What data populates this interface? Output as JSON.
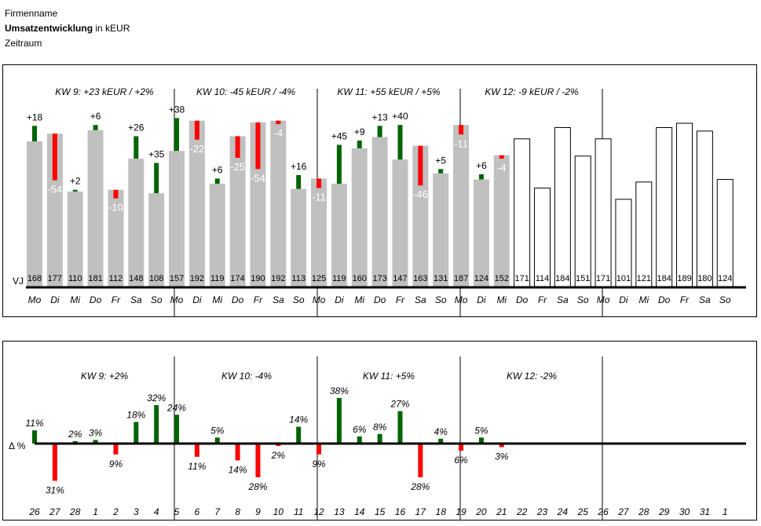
{
  "header": {
    "company": "Firmenname",
    "title_bold": "Umsatzentwicklung",
    "title_rest": " in kEUR",
    "period": "Zeitraum"
  },
  "colors": {
    "bar_py": "#c0c0c0",
    "positive": "#006400",
    "negative": "#ff0000",
    "axis": "#000000",
    "outline_bar": "#000000"
  },
  "chart_data": [
    {
      "type": "bar",
      "variant": "waterfall-variance",
      "baseline_label": "VJ",
      "weeks": [
        {
          "label": "KW 9:  +23 kEUR / +2%"
        },
        {
          "label": "KW 10:  -45 kEUR / -4%"
        },
        {
          "label": "KW 11:  +55 kEUR / +5%"
        },
        {
          "label": "KW 12:  -9 kEUR / -2%"
        },
        {
          "label": ""
        }
      ],
      "days": [
        {
          "cat": "Mo",
          "vj": 168,
          "delta": "+18"
        },
        {
          "cat": "Di",
          "vj": 177,
          "delta": "-54"
        },
        {
          "cat": "Mi",
          "vj": 110,
          "delta": "+2"
        },
        {
          "cat": "Do",
          "vj": 181,
          "delta": "+6"
        },
        {
          "cat": "Fr",
          "vj": 112,
          "delta": "-10"
        },
        {
          "cat": "Sa",
          "vj": 148,
          "delta": "+26"
        },
        {
          "cat": "So",
          "vj": 108,
          "delta": "+35"
        },
        {
          "cat": "Mo",
          "vj": 157,
          "delta": "+38"
        },
        {
          "cat": "Di",
          "vj": 192,
          "delta": "-22"
        },
        {
          "cat": "Mi",
          "vj": 119,
          "delta": "+6"
        },
        {
          "cat": "Do",
          "vj": 174,
          "delta": "-25"
        },
        {
          "cat": "Fr",
          "vj": 190,
          "delta": "-54"
        },
        {
          "cat": "Sa",
          "vj": 192,
          "delta": "-4"
        },
        {
          "cat": "So",
          "vj": 113,
          "delta": "+16"
        },
        {
          "cat": "Mo",
          "vj": 125,
          "delta": "-11"
        },
        {
          "cat": "Di",
          "vj": 119,
          "delta": "+45"
        },
        {
          "cat": "Mi",
          "vj": 160,
          "delta": "+9"
        },
        {
          "cat": "Do",
          "vj": 173,
          "delta": "+13"
        },
        {
          "cat": "Fr",
          "vj": 147,
          "delta": "+40"
        },
        {
          "cat": "Sa",
          "vj": 163,
          "delta": "-46"
        },
        {
          "cat": "So",
          "vj": 131,
          "delta": "+5"
        },
        {
          "cat": "Mo",
          "vj": 187,
          "delta": "-11"
        },
        {
          "cat": "Di",
          "vj": 124,
          "delta": "+6"
        },
        {
          "cat": "Mi",
          "vj": 152,
          "delta": "-4"
        },
        {
          "cat": "Do",
          "vj": 171,
          "delta": null
        },
        {
          "cat": "Fr",
          "vj": 114,
          "delta": null
        },
        {
          "cat": "Sa",
          "vj": 184,
          "delta": null
        },
        {
          "cat": "So",
          "vj": 151,
          "delta": null
        },
        {
          "cat": "Mo",
          "vj": 171,
          "delta": null
        },
        {
          "cat": "Di",
          "vj": 101,
          "delta": null
        },
        {
          "cat": "Mi",
          "vj": 121,
          "delta": null
        },
        {
          "cat": "Do",
          "vj": 184,
          "delta": null
        },
        {
          "cat": "Fr",
          "vj": 189,
          "delta": null
        },
        {
          "cat": "Sa",
          "vj": 180,
          "delta": null
        },
        {
          "cat": "So",
          "vj": 124,
          "delta": null
        }
      ],
      "ylim": [
        0,
        205
      ]
    },
    {
      "type": "bar",
      "variant": "percent-variance",
      "axis_label": "Δ %",
      "weeks": [
        {
          "label": "KW 9: +2%"
        },
        {
          "label": "KW 10: -4%"
        },
        {
          "label": "KW 11: +5%"
        },
        {
          "label": "KW 12: -2%"
        },
        {
          "label": ""
        }
      ],
      "days": [
        {
          "cat": "26",
          "pct": 11,
          "label": "11%"
        },
        {
          "cat": "27",
          "pct": -31,
          "label": "31%"
        },
        {
          "cat": "28",
          "pct": 2,
          "label": "2%"
        },
        {
          "cat": "1",
          "pct": 3,
          "label": "3%"
        },
        {
          "cat": "2",
          "pct": -9,
          "label": "9%"
        },
        {
          "cat": "3",
          "pct": 18,
          "label": "18%"
        },
        {
          "cat": "4",
          "pct": 32,
          "label": "32%"
        },
        {
          "cat": "5",
          "pct": 24,
          "label": "24%"
        },
        {
          "cat": "6",
          "pct": -11,
          "label": "11%"
        },
        {
          "cat": "7",
          "pct": 5,
          "label": "5%"
        },
        {
          "cat": "8",
          "pct": -14,
          "label": "14%"
        },
        {
          "cat": "9",
          "pct": -28,
          "label": "28%"
        },
        {
          "cat": "10",
          "pct": -2,
          "label": "2%"
        },
        {
          "cat": "11",
          "pct": 14,
          "label": "14%"
        },
        {
          "cat": "12",
          "pct": -9,
          "label": "9%"
        },
        {
          "cat": "13",
          "pct": 38,
          "label": "38%"
        },
        {
          "cat": "14",
          "pct": 6,
          "label": "6%"
        },
        {
          "cat": "15",
          "pct": 8,
          "label": "8%"
        },
        {
          "cat": "16",
          "pct": 27,
          "label": "27%"
        },
        {
          "cat": "17",
          "pct": -28,
          "label": "28%"
        },
        {
          "cat": "18",
          "pct": 4,
          "label": "4%"
        },
        {
          "cat": "19",
          "pct": -6,
          "label": "6%"
        },
        {
          "cat": "20",
          "pct": 5,
          "label": "5%"
        },
        {
          "cat": "21",
          "pct": -3,
          "label": "3%"
        },
        {
          "cat": "22",
          "pct": null,
          "label": ""
        },
        {
          "cat": "23",
          "pct": null,
          "label": ""
        },
        {
          "cat": "24",
          "pct": null,
          "label": ""
        },
        {
          "cat": "25",
          "pct": null,
          "label": ""
        },
        {
          "cat": "26",
          "pct": null,
          "label": ""
        },
        {
          "cat": "27",
          "pct": null,
          "label": ""
        },
        {
          "cat": "28",
          "pct": null,
          "label": ""
        },
        {
          "cat": "29",
          "pct": null,
          "label": ""
        },
        {
          "cat": "30",
          "pct": null,
          "label": ""
        },
        {
          "cat": "31",
          "pct": null,
          "label": ""
        },
        {
          "cat": "1",
          "pct": null,
          "label": ""
        }
      ]
    }
  ]
}
